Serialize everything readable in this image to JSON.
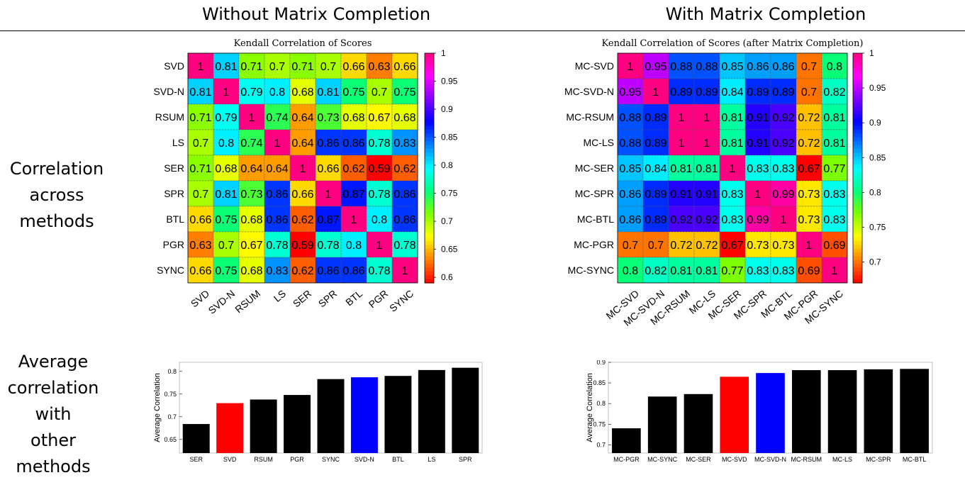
{
  "headers": {
    "left": "Without Matrix Completion",
    "right": "With Matrix Completion"
  },
  "row_labels": {
    "corr_lines": [
      "Correlation",
      "across",
      "methods"
    ],
    "avg_lines": [
      "Average",
      "correlation",
      "with",
      "other",
      "methods"
    ]
  },
  "colors": {
    "colormap": [
      "#ff0000",
      "#ff8000",
      "#ffff00",
      "#80ff00",
      "#00ff80",
      "#00ffff",
      "#0080ff",
      "#0000ff",
      "#8000ff",
      "#ff00ff",
      "#ff0080"
    ],
    "highlight_red": "#ff0000",
    "highlight_blue": "#0000ff",
    "bar_default": "#000000"
  },
  "chart_data": [
    {
      "type": "heatmap",
      "title": "Kendall Correlation of Scores",
      "row_labels": [
        "SVD",
        "SVD-N",
        "RSUM",
        "LS",
        "SER",
        "SPR",
        "BTL",
        "PGR",
        "SYNC"
      ],
      "col_labels": [
        "SVD",
        "SVD-N",
        "RSUM",
        "LS",
        "SER",
        "SPR",
        "BTL",
        "PGR",
        "SYNC"
      ],
      "values": [
        [
          1,
          0.81,
          0.71,
          0.7,
          0.71,
          0.7,
          0.66,
          0.63,
          0.66
        ],
        [
          0.81,
          1,
          0.79,
          0.8,
          0.68,
          0.81,
          0.75,
          0.7,
          0.75
        ],
        [
          0.71,
          0.79,
          1,
          0.74,
          0.64,
          0.73,
          0.68,
          0.67,
          0.68
        ],
        [
          0.7,
          0.8,
          0.74,
          1,
          0.64,
          0.86,
          0.86,
          0.78,
          0.83
        ],
        [
          0.71,
          0.68,
          0.64,
          0.64,
          1,
          0.66,
          0.62,
          0.59,
          0.62
        ],
        [
          0.7,
          0.81,
          0.73,
          0.86,
          0.66,
          1,
          0.87,
          0.78,
          0.86
        ],
        [
          0.66,
          0.75,
          0.68,
          0.86,
          0.62,
          0.87,
          1,
          0.8,
          0.86
        ],
        [
          0.63,
          0.7,
          0.67,
          0.78,
          0.59,
          0.78,
          0.8,
          1,
          0.78
        ],
        [
          0.66,
          0.75,
          0.68,
          0.83,
          0.62,
          0.86,
          0.86,
          0.78,
          1
        ]
      ],
      "colorbar": {
        "range": [
          0.59,
          1
        ],
        "ticks": [
          1,
          0.95,
          0.9,
          0.85,
          0.8,
          0.75,
          0.7,
          0.65,
          0.6
        ]
      }
    },
    {
      "type": "heatmap",
      "title": "Kendall Correlation of Scores (after Matrix Completion)",
      "row_labels": [
        "MC-SVD",
        "MC-SVD-N",
        "MC-RSUM",
        "MC-LS",
        "MC-SER",
        "MC-SPR",
        "MC-BTL",
        "MC-PGR",
        "MC-SYNC"
      ],
      "col_labels": [
        "MC-SVD",
        "MC-SVD-N",
        "MC-RSUM",
        "MC-LS",
        "MC-SER",
        "MC-SPR",
        "MC-BTL",
        "MC-PGR",
        "MC-SYNC"
      ],
      "values": [
        [
          1,
          0.95,
          0.88,
          0.88,
          0.85,
          0.86,
          0.86,
          0.7,
          0.8
        ],
        [
          0.95,
          1,
          0.89,
          0.89,
          0.84,
          0.89,
          0.89,
          0.7,
          0.82
        ],
        [
          0.88,
          0.89,
          1,
          1,
          0.81,
          0.91,
          0.92,
          0.72,
          0.81
        ],
        [
          0.88,
          0.89,
          1,
          1,
          0.81,
          0.91,
          0.92,
          0.72,
          0.81
        ],
        [
          0.85,
          0.84,
          0.81,
          0.81,
          1,
          0.83,
          0.83,
          0.67,
          0.77
        ],
        [
          0.86,
          0.89,
          0.91,
          0.91,
          0.83,
          1,
          0.99,
          0.73,
          0.83
        ],
        [
          0.86,
          0.89,
          0.92,
          0.92,
          0.83,
          0.99,
          1,
          0.73,
          0.83
        ],
        [
          0.7,
          0.7,
          0.72,
          0.72,
          0.67,
          0.73,
          0.73,
          1,
          0.69
        ],
        [
          0.8,
          0.82,
          0.81,
          0.81,
          0.77,
          0.83,
          0.83,
          0.69,
          1
        ]
      ],
      "colorbar": {
        "range": [
          0.67,
          1
        ],
        "ticks": [
          1,
          0.95,
          0.9,
          0.85,
          0.8,
          0.75,
          0.7
        ]
      }
    },
    {
      "type": "bar",
      "ylabel": "Average Correlation",
      "categories": [
        "SER",
        "SVD",
        "RSUM",
        "PGR",
        "SYNC",
        "SVD-N",
        "BTL",
        "LS",
        "SPR"
      ],
      "values": [
        0.684,
        0.73,
        0.738,
        0.748,
        0.783,
        0.787,
        0.79,
        0.803,
        0.808
      ],
      "colors": [
        "#000000",
        "#ff0000",
        "#000000",
        "#000000",
        "#000000",
        "#0000ff",
        "#000000",
        "#000000",
        "#000000"
      ],
      "ylim": [
        0.62,
        0.82
      ],
      "yticks": [
        0.65,
        0.7,
        0.75,
        0.8
      ]
    },
    {
      "type": "bar",
      "ylabel": "Average Correlation",
      "categories": [
        "MC-PGR",
        "MC-SYNC",
        "MC-SER",
        "MC-SVD",
        "MC-SVD-N",
        "MC-RSUM",
        "MC-LS",
        "MC-SPR",
        "MC-BTL"
      ],
      "values": [
        0.74,
        0.817,
        0.823,
        0.865,
        0.874,
        0.881,
        0.881,
        0.883,
        0.884
      ],
      "colors": [
        "#000000",
        "#000000",
        "#000000",
        "#ff0000",
        "#0000ff",
        "#000000",
        "#000000",
        "#000000",
        "#000000"
      ],
      "ylim": [
        0.68,
        0.9
      ],
      "yticks": [
        0.7,
        0.75,
        0.8,
        0.85,
        0.9
      ]
    }
  ]
}
